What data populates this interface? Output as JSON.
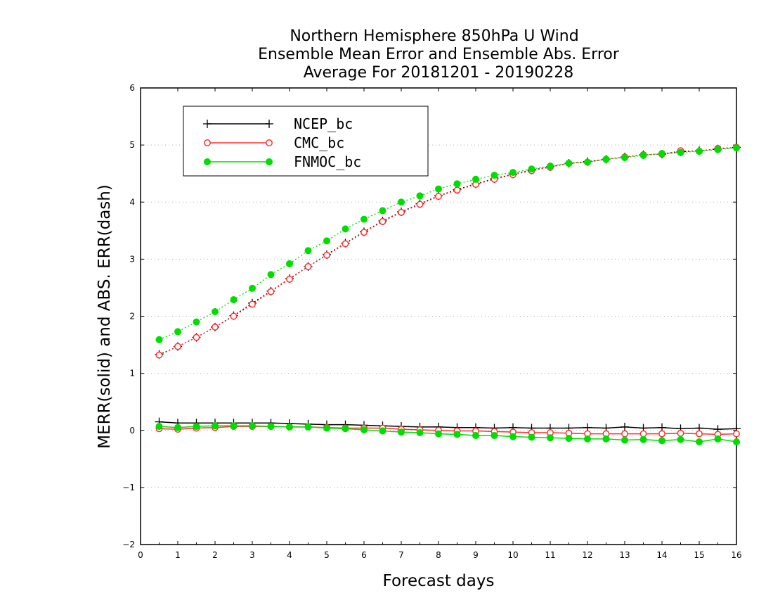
{
  "chart_data": {
    "type": "line",
    "title_lines": [
      "Northern Hemisphere 850hPa U Wind",
      "Ensemble Mean Error and Ensemble Abs. Error",
      "Average For 20181201 - 20190228"
    ],
    "xlabel": "Forecast days",
    "ylabel": "MERR(solid) and ABS. ERR(dash)",
    "xlim": [
      0,
      16
    ],
    "ylim": [
      -2,
      6
    ],
    "xticks": [
      0,
      1,
      2,
      3,
      4,
      5,
      6,
      7,
      8,
      9,
      10,
      11,
      12,
      13,
      14,
      15,
      16
    ],
    "yticks": [
      -2,
      -1,
      0,
      1,
      2,
      3,
      4,
      5,
      6
    ],
    "ytick_labels": [
      "−2",
      "−1",
      "0",
      "1",
      "2",
      "3",
      "4",
      "5",
      "6"
    ],
    "grid": "horizontal dotted",
    "legend_position": "top-left",
    "x": [
      0.5,
      1,
      1.5,
      2,
      2.5,
      3,
      3.5,
      4,
      4.5,
      5,
      5.5,
      6,
      6.5,
      7,
      7.5,
      8,
      8.5,
      9,
      9.5,
      10,
      10.5,
      11,
      11.5,
      12,
      12.5,
      13,
      13.5,
      14,
      14.5,
      15,
      15.5,
      16
    ],
    "series": [
      {
        "name": "NCEP_bc",
        "color": "#000000",
        "marker": "plus",
        "merr": [
          0.15,
          0.13,
          0.13,
          0.13,
          0.13,
          0.13,
          0.13,
          0.12,
          0.11,
          0.1,
          0.1,
          0.09,
          0.08,
          0.07,
          0.06,
          0.06,
          0.05,
          0.05,
          0.04,
          0.05,
          0.04,
          0.04,
          0.04,
          0.05,
          0.04,
          0.06,
          0.04,
          0.05,
          0.03,
          0.04,
          0.02,
          0.03
        ],
        "abs_err": [
          1.33,
          1.47,
          1.63,
          1.81,
          2.01,
          2.23,
          2.44,
          2.66,
          2.87,
          3.08,
          3.28,
          3.48,
          3.67,
          3.83,
          3.97,
          4.11,
          4.22,
          4.32,
          4.41,
          4.49,
          4.56,
          4.62,
          4.68,
          4.71,
          4.75,
          4.79,
          4.83,
          4.84,
          4.88,
          4.9,
          4.93,
          4.96
        ]
      },
      {
        "name": "CMC_bc",
        "color": "#ff3030",
        "marker": "open-circle",
        "merr": [
          0.03,
          0.02,
          0.04,
          0.05,
          0.07,
          0.07,
          0.07,
          0.06,
          0.06,
          0.05,
          0.04,
          0.04,
          0.04,
          0.02,
          0.01,
          0.0,
          -0.01,
          -0.01,
          -0.02,
          -0.03,
          -0.04,
          -0.04,
          -0.05,
          -0.06,
          -0.06,
          -0.06,
          -0.06,
          -0.06,
          -0.05,
          -0.06,
          -0.07,
          -0.06
        ],
        "abs_err": [
          1.32,
          1.47,
          1.63,
          1.81,
          2.0,
          2.21,
          2.43,
          2.65,
          2.87,
          3.07,
          3.27,
          3.47,
          3.66,
          3.82,
          3.96,
          4.1,
          4.21,
          4.31,
          4.4,
          4.48,
          4.55,
          4.61,
          4.68,
          4.7,
          4.75,
          4.79,
          4.83,
          4.84,
          4.9,
          4.89,
          4.94,
          4.96
        ]
      },
      {
        "name": "FNMOC_bc",
        "color": "#00dd00",
        "marker": "filled-circle",
        "merr": [
          0.07,
          0.05,
          0.07,
          0.08,
          0.08,
          0.08,
          0.07,
          0.06,
          0.06,
          0.04,
          0.03,
          0.01,
          -0.01,
          -0.03,
          -0.04,
          -0.06,
          -0.07,
          -0.09,
          -0.09,
          -0.11,
          -0.12,
          -0.13,
          -0.14,
          -0.15,
          -0.15,
          -0.17,
          -0.16,
          -0.18,
          -0.16,
          -0.2,
          -0.15,
          -0.2
        ],
        "abs_err": [
          1.59,
          1.73,
          1.9,
          2.08,
          2.29,
          2.49,
          2.73,
          2.92,
          3.15,
          3.32,
          3.53,
          3.7,
          3.85,
          4.0,
          4.11,
          4.23,
          4.32,
          4.4,
          4.47,
          4.52,
          4.58,
          4.63,
          4.68,
          4.7,
          4.75,
          4.78,
          4.82,
          4.85,
          4.87,
          4.89,
          4.92,
          4.95
        ]
      }
    ]
  }
}
